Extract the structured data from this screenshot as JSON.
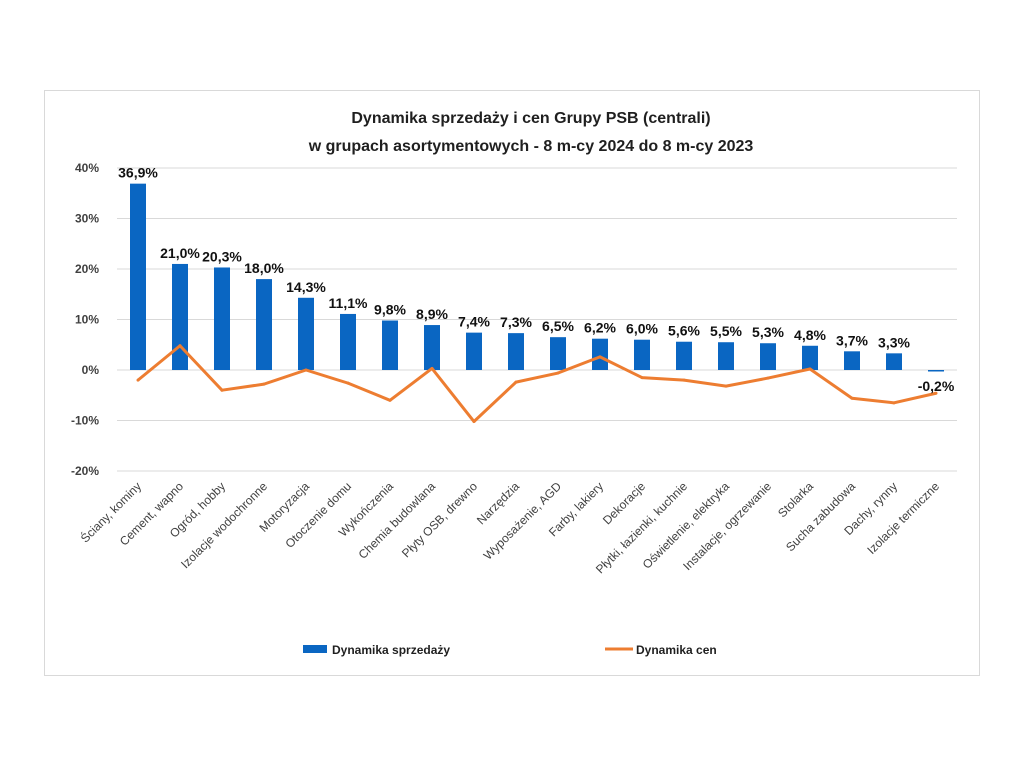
{
  "chart_data": {
    "type": "bar",
    "title": [
      "Dynamika sprzedaży  i cen Grupy PSB (centrali)",
      "w grupach asortymentowych  - 8 m-cy 2024 do 8 m-cy 2023"
    ],
    "categories": [
      "Ściany, kominy",
      "Cement, wapno",
      "Ogród, hobby",
      "Izolacje wodochronne",
      "Motoryzacja",
      "Otoczenie domu",
      "Wykończenia",
      "Chemia budowlana",
      "Płyty OSB, drewno",
      "Narzędzia",
      "Wyposażenie, AGD",
      "Farby, lakiery",
      "Dekoracje",
      "Płytki, łazienki, kuchnie",
      "Oświetlenie, elektryka",
      "Instalacje, ogrzewanie",
      "Stolarka",
      "Sucha zabudowa",
      "Dachy, rynny",
      "Izolacje termiczne"
    ],
    "series": [
      {
        "name": "Dynamika sprzedaży",
        "type": "bar",
        "color": "#0a66c2",
        "values": [
          36.9,
          21.0,
          20.3,
          18.0,
          14.3,
          11.1,
          9.8,
          8.9,
          7.4,
          7.3,
          6.5,
          6.2,
          6.0,
          5.6,
          5.5,
          5.3,
          4.8,
          3.7,
          3.3,
          -0.2
        ],
        "labels": [
          "36,9%",
          "21,0%",
          "20,3%",
          "18,0%",
          "14,3%",
          "11,1%",
          "9,8%",
          "8,9%",
          "7,4%",
          "7,3%",
          "6,5%",
          "6,2%",
          "6,0%",
          "5,6%",
          "5,5%",
          "5,3%",
          "4,8%",
          "3,7%",
          "3,3%",
          "-0,2%"
        ]
      },
      {
        "name": "Dynamika cen",
        "type": "line",
        "color": "#ed7d31",
        "values": [
          -2.0,
          4.8,
          -4.0,
          -2.8,
          0.0,
          -2.6,
          -6.0,
          0.3,
          -10.2,
          -2.4,
          -0.6,
          2.6,
          -1.5,
          -2.0,
          -3.2,
          -1.6,
          0.2,
          -5.6,
          -6.5,
          -4.6
        ]
      }
    ],
    "y_ticks": [
      "40%",
      "30%",
      "20%",
      "10%",
      "0%",
      "-10%",
      "-20%"
    ],
    "ylim": [
      -20,
      40
    ],
    "grid": true,
    "legend": "bottom"
  }
}
